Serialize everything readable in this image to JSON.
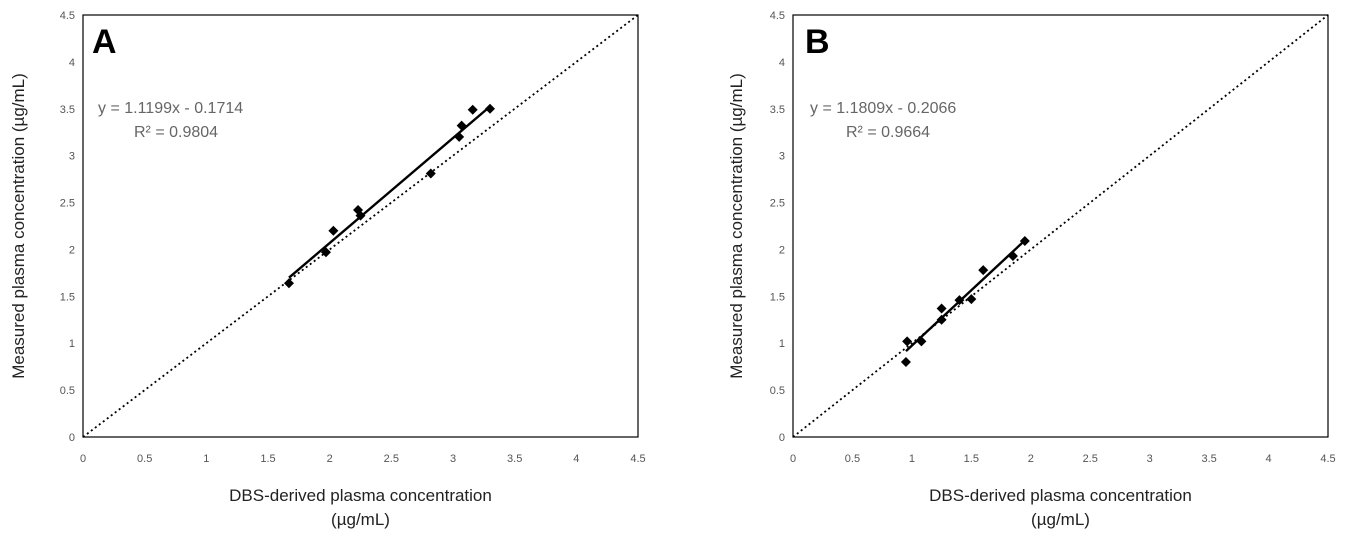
{
  "chart_data": [
    {
      "type": "scatter",
      "panel_label": "A",
      "xlabel_line1": "DBS-derived plasma concentration",
      "xlabel_line2": "(µg/mL)",
      "ylabel": "Measured plasma concentration (µg/mL)",
      "xlim": [
        0,
        4.5
      ],
      "ylim": [
        0,
        4.5
      ],
      "x_ticks": [
        "0",
        "0.5",
        "1",
        "1.5",
        "2",
        "2.5",
        "3",
        "3.5",
        "4",
        "4.5"
      ],
      "y_ticks": [
        "0",
        "0.5",
        "1",
        "1.5",
        "2",
        "2.5",
        "3",
        "3.5",
        "4",
        "4.5"
      ],
      "equation": "y = 1.1199x - 0.1714",
      "r_squared": "R² = 0.9804",
      "trend": {
        "slope": 1.1199,
        "intercept": -0.1714,
        "x_range": [
          1.67,
          3.3
        ]
      },
      "identity_line": true,
      "points": [
        {
          "x": 1.67,
          "y": 1.64
        },
        {
          "x": 1.97,
          "y": 1.97
        },
        {
          "x": 2.03,
          "y": 2.2
        },
        {
          "x": 2.23,
          "y": 2.42
        },
        {
          "x": 2.25,
          "y": 2.36
        },
        {
          "x": 2.82,
          "y": 2.81
        },
        {
          "x": 3.05,
          "y": 3.2
        },
        {
          "x": 3.07,
          "y": 3.32
        },
        {
          "x": 3.16,
          "y": 3.49
        },
        {
          "x": 3.3,
          "y": 3.5
        }
      ]
    },
    {
      "type": "scatter",
      "panel_label": "B",
      "xlabel_line1": "DBS-derived plasma concentration",
      "xlabel_line2": "(µg/mL)",
      "ylabel": "Measured plasma concentration (µg/mL)",
      "xlim": [
        0,
        4.5
      ],
      "ylim": [
        0,
        4.5
      ],
      "x_ticks": [
        "0",
        "0.5",
        "1",
        "1.5",
        "2",
        "2.5",
        "3",
        "3.5",
        "4",
        "4.5"
      ],
      "y_ticks": [
        "0",
        "0.5",
        "1",
        "1.5",
        "2",
        "2.5",
        "3",
        "3.5",
        "4",
        "4.5"
      ],
      "equation": "y = 1.1809x - 0.2066",
      "r_squared": "R² = 0.9664",
      "trend": {
        "slope": 1.1809,
        "intercept": -0.2066,
        "x_range": [
          0.95,
          1.95
        ]
      },
      "identity_line": true,
      "points": [
        {
          "x": 0.95,
          "y": 0.8
        },
        {
          "x": 0.96,
          "y": 1.02
        },
        {
          "x": 1.08,
          "y": 1.02
        },
        {
          "x": 1.25,
          "y": 1.25
        },
        {
          "x": 1.25,
          "y": 1.37
        },
        {
          "x": 1.4,
          "y": 1.46
        },
        {
          "x": 1.5,
          "y": 1.47
        },
        {
          "x": 1.6,
          "y": 1.78
        },
        {
          "x": 1.85,
          "y": 1.93
        },
        {
          "x": 1.95,
          "y": 2.09
        }
      ]
    }
  ]
}
